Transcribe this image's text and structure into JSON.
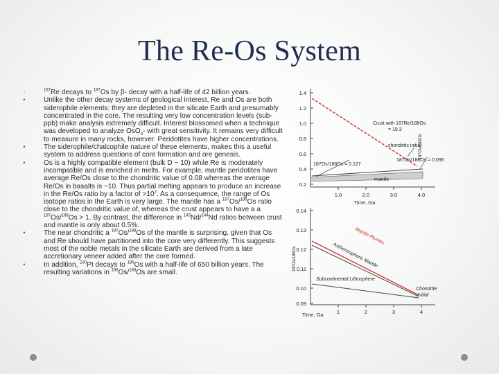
{
  "slide": {
    "title": "The Re-Os System",
    "bullets": [
      {
        "bullet": "·",
        "parts": [
          {
            "sup": "187"
          },
          {
            "t": "Re decays to "
          },
          {
            "sup": "187"
          },
          {
            "t": "Os by β- decay with a half-life of 42 billion years."
          }
        ]
      },
      {
        "bullet": "•",
        "parts": [
          {
            "t": "Unlike the other decay systems of geological interest, Re and Os are both siderophile elements: they are depleted in the silicate Earth and presumably concentrated in the core. The resulting very low concentration levels (sub-ppb) make analysis extremely difficult. Interest blossomed when a technique was developed to analyze OsO"
          },
          {
            "sub": "4"
          },
          {
            "t": "- with great sensitivity. It remains very difficult to measure in many rocks, however. Peridotites have higher concentrations."
          }
        ]
      },
      {
        "bullet": "•",
        "parts": [
          {
            "t": "The siderophile/chalcophile nature of these elements, makes this a useful system to address questions of core formation and ore genesis."
          }
        ]
      },
      {
        "bullet": "•",
        "parts": [
          {
            "t": "Os is a highly compatible element (bulk D ~ 10) while Re is moderately incompatible and is enriched in melts. For example, mantle peridotites have average Re/Os close to the chondritic value of 0.08 whereas the average Re/Os in basalts is ~10. Thus partial melting appears to produce an increase in the Re/Os ratio by a factor of >10"
          },
          {
            "sup": "2"
          },
          {
            "t": ". As a consequence, the range of Os isotope ratios in the Earth is very large. The mantle has a "
          },
          {
            "sup": "187"
          },
          {
            "t": "Os/"
          },
          {
            "sup": "188"
          },
          {
            "t": "Os ratio close to the chondritic value of, whereas the crust appears to have a a "
          },
          {
            "sup": "187"
          },
          {
            "t": "Os/"
          },
          {
            "sup": "188"
          },
          {
            "t": "Os > 1. By contrast, the difference in "
          },
          {
            "sup": "143"
          },
          {
            "t": "Nd/"
          },
          {
            "sup": "144"
          },
          {
            "t": "Nd ratios between crust and mantle is only about 0.5%."
          }
        ]
      },
      {
        "bullet": "•",
        "parts": [
          {
            "t": "The near chondritic a "
          },
          {
            "sup": "187"
          },
          {
            "t": "Os/"
          },
          {
            "sup": "188"
          },
          {
            "t": "Os of the mantle is surprising, given that Os and Re should have partitioned into the core very differently. This suggests most of the noble metals in the silicate Earth are derived from a late accretionary veneer added after the core formed."
          }
        ]
      },
      {
        "bullet": "•",
        "parts": [
          {
            "t": "In addition, "
          },
          {
            "sup": "190"
          },
          {
            "t": "Pt decays to "
          },
          {
            "sup": "186"
          },
          {
            "t": "Os with a half-life of 650 billion years. The resulting variations in "
          },
          {
            "sup": "186"
          },
          {
            "t": "Os/"
          },
          {
            "sup": "188"
          },
          {
            "t": "Os are small."
          }
        ]
      }
    ]
  },
  "figure": {
    "top": {
      "y_ticks": [
        "1.4",
        "1.2",
        "1.0",
        "0.8",
        "0.6",
        "0.4",
        "0.2"
      ],
      "x_ticks": [
        "1.0",
        "2.0",
        "3.0",
        "4.0"
      ],
      "x_label": "Time, Ga",
      "y_label": "187Os/188Os",
      "crust_label_line1": "Crust with 187Re/188Os",
      "crust_label_line2": "= 19.3",
      "chondritic_label": "chondritic initial",
      "ratio_left": "187Os/188Os = 0.127",
      "ratio_right": "187Os/188Os = 0.096",
      "mantle_label": "mantle",
      "crust_color": "#d0342c",
      "line_color": "#444444"
    },
    "bottom": {
      "y_ticks": [
        "0.14",
        "0.13",
        "0.12",
        "0.11",
        "0.10",
        "0.09"
      ],
      "x_ticks": [
        "1",
        "2",
        "3",
        "4"
      ],
      "x_label": "Time, Ga",
      "y_label": "187Os/188Os",
      "plumes_label": "Mantle Plumes",
      "asthenospheric_label": "Asthenospheric Mantle",
      "sublithosphere_label": "Subcontinental Lithosphere",
      "chondrite_label_line1": "Chondrite",
      "chondrite_label_line2": "Initial",
      "plume_color": "#d0342c",
      "line_color": "#444444"
    }
  }
}
